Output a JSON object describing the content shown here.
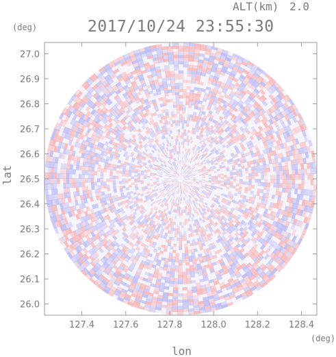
{
  "header": {
    "altitude_label": "ALT(km)",
    "altitude_value": "2.0",
    "timestamp": "2017/10/24 23:55:30"
  },
  "colors": {
    "positive": "#f6b0b0",
    "negative": "#b8b8f4",
    "neutral": "#f6f4fb",
    "axis": "#999999",
    "text": "#7a7a7a"
  },
  "chart_data": {
    "type": "heatmap",
    "title": "2017/10/24 23:55:30",
    "subtitle": "ALT(km) 2.0",
    "xlabel": "lon",
    "ylabel": "lat",
    "x_unit": "(deg)",
    "y_unit": "(deg)",
    "xlim": [
      127.23,
      128.47
    ],
    "ylim": [
      25.955,
      27.045
    ],
    "center": {
      "lon": 127.85,
      "lat": 26.5
    },
    "radius_lat_deg": 0.545,
    "x_ticks": [
      127.4,
      127.6,
      127.8,
      128.0,
      128.2,
      128.4
    ],
    "x_tick_labels": [
      "127.4",
      "127.6",
      "127.8",
      "128.0",
      "128.2",
      "128.4"
    ],
    "y_ticks": [
      27.0,
      26.9,
      26.8,
      26.7,
      26.6,
      26.5,
      26.4,
      26.3,
      26.2,
      26.1,
      26.0
    ],
    "y_tick_labels": [
      "27.0",
      "26.9",
      "26.8",
      "26.7",
      "26.6",
      "26.5",
      "26.4",
      "26.3",
      "26.2",
      "26.1",
      "26.0"
    ],
    "grid": false,
    "legend": "none"
  }
}
